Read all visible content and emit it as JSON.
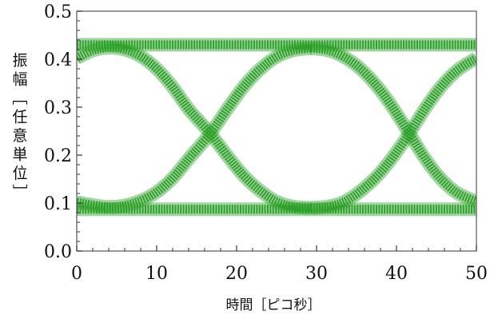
{
  "chart_data": {
    "type": "line",
    "xlabel": "時間［ピコ秒］",
    "ylabel_chars": [
      "振",
      "幅",
      "［",
      "任",
      "意",
      "単",
      "位",
      "］"
    ],
    "xlim": [
      0,
      50
    ],
    "ylim": [
      0,
      0.5
    ],
    "x_ticks": [
      "0",
      "10",
      "20",
      "30",
      "40",
      "50"
    ],
    "y_ticks": [
      "0.0",
      "0.1",
      "0.2",
      "0.3",
      "0.4",
      "0.5"
    ],
    "x_tick_values": [
      0,
      10,
      20,
      30,
      40,
      50
    ],
    "y_tick_values": [
      0,
      0.1,
      0.2,
      0.3,
      0.4,
      0.5
    ],
    "grid": false,
    "series_color": "#2ea12a",
    "series": [
      {
        "id": "high-rail",
        "x": [
          0,
          50
        ],
        "y": [
          0.43,
          0.43
        ]
      },
      {
        "id": "low-rail",
        "x": [
          0,
          50
        ],
        "y": [
          0.087,
          0.087
        ]
      },
      {
        "id": "falling-1",
        "x": [
          0,
          2,
          4,
          6,
          8,
          10,
          12,
          14,
          16.7,
          19,
          21,
          23,
          25,
          27,
          29.3
        ],
        "y": [
          0.402,
          0.418,
          0.424,
          0.42,
          0.406,
          0.38,
          0.342,
          0.296,
          0.245,
          0.195,
          0.155,
          0.125,
          0.103,
          0.093,
          0.09
        ]
      },
      {
        "id": "rising-1",
        "x": [
          0,
          2,
          4,
          6,
          8,
          10,
          12,
          14,
          16.7,
          19,
          21,
          23,
          25,
          27,
          29.3
        ],
        "y": [
          0.102,
          0.096,
          0.092,
          0.095,
          0.105,
          0.123,
          0.152,
          0.192,
          0.245,
          0.3,
          0.345,
          0.38,
          0.405,
          0.418,
          0.423
        ]
      },
      {
        "id": "falling-2",
        "x": [
          29.3,
          31.5,
          33.5,
          35.5,
          37.5,
          39.5,
          41.6,
          43.7,
          45.7,
          47.7,
          50
        ],
        "y": [
          0.423,
          0.418,
          0.404,
          0.38,
          0.345,
          0.3,
          0.245,
          0.19,
          0.148,
          0.12,
          0.103
        ]
      },
      {
        "id": "rising-2",
        "x": [
          29.3,
          31.5,
          33.5,
          35.5,
          37.5,
          39.5,
          41.6,
          43.7,
          45.7,
          47.7,
          50
        ],
        "y": [
          0.09,
          0.093,
          0.103,
          0.125,
          0.155,
          0.195,
          0.245,
          0.3,
          0.345,
          0.378,
          0.402
        ]
      }
    ]
  }
}
